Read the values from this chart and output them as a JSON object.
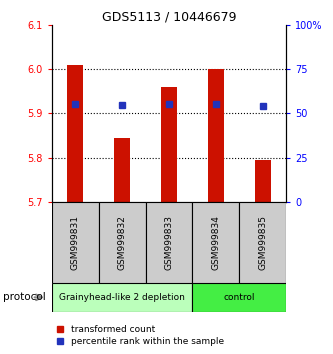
{
  "title": "GDS5113 / 10446679",
  "samples": [
    "GSM999831",
    "GSM999832",
    "GSM999833",
    "GSM999834",
    "GSM999835"
  ],
  "bar_values": [
    6.01,
    5.845,
    5.96,
    6.0,
    5.795
  ],
  "percentile_values": [
    55.5,
    54.5,
    55.5,
    55.0,
    54.0
  ],
  "bar_bottom": 5.7,
  "ylim_left": [
    5.7,
    6.1
  ],
  "ylim_right": [
    0,
    100
  ],
  "yticks_left": [
    5.7,
    5.8,
    5.9,
    6.0,
    6.1
  ],
  "yticks_right": [
    0,
    25,
    50,
    75,
    100
  ],
  "ytick_labels_right": [
    "0",
    "25",
    "50",
    "75",
    "100%"
  ],
  "bar_color": "#cc1100",
  "percentile_color": "#2233bb",
  "groups": [
    {
      "label": "Grainyhead-like 2 depletion",
      "samples": [
        0,
        1,
        2
      ],
      "color": "#bbffbb"
    },
    {
      "label": "control",
      "samples": [
        3,
        4
      ],
      "color": "#44ee44"
    }
  ],
  "protocol_label": "protocol",
  "legend_items": [
    {
      "color": "#cc1100",
      "label": "transformed count"
    },
    {
      "color": "#2233bb",
      "label": "percentile rank within the sample"
    }
  ],
  "sample_box_color": "#cccccc"
}
